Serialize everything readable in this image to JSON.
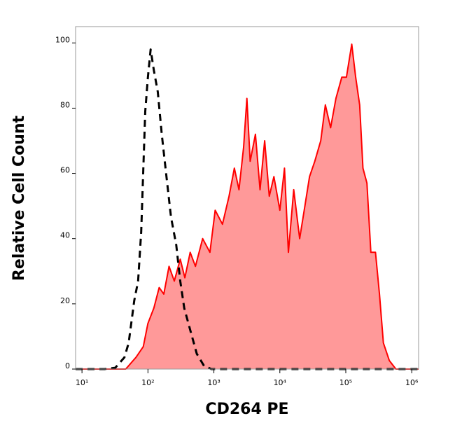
{
  "chart_data": {
    "type": "histogram-overlay",
    "xlabel": "CD264 PE",
    "ylabel": "Relative Cell Count",
    "xscale": "log",
    "xlim": [
      8,
      1270000
    ],
    "ylim": [
      0,
      105
    ],
    "xticks": [
      {
        "value": 10,
        "label": "10¹"
      },
      {
        "value": 100,
        "label": "10²"
      },
      {
        "value": 1000,
        "label": "10³"
      },
      {
        "value": 10000,
        "label": "10⁴"
      },
      {
        "value": 100000,
        "label": "10⁵"
      },
      {
        "value": 1000000,
        "label": "10⁶"
      }
    ],
    "yticks": [
      0,
      20,
      40,
      60,
      80,
      100
    ],
    "series": [
      {
        "color": "#ff0000",
        "fill": "#ff9999",
        "dashed": false,
        "x": [
          8,
          46,
          66,
          85,
          100,
          123,
          148,
          174,
          209,
          251,
          309,
          363,
          437,
          525,
          676,
          871,
          1047,
          1349,
          1698,
          2042,
          2399,
          2818,
          3162,
          3548,
          4266,
          5012,
          5888,
          6918,
          8128,
          10000,
          11749,
          13490,
          16218,
          19953,
          23442,
          28184,
          33884,
          41687,
          48978,
          58884,
          70795,
          87096,
          102329,
          123027,
          141254,
          162181,
          181970,
          208930,
          239883,
          281838,
          323594,
          371535,
          457088,
          575440,
          1270000
        ],
        "values": [
          0,
          0,
          3.6,
          6.9,
          14,
          18.7,
          25,
          23,
          31.5,
          27,
          33.7,
          28,
          35.8,
          31.5,
          40,
          35.8,
          48.7,
          44.4,
          53,
          61.6,
          55,
          68,
          83,
          63.7,
          72,
          55,
          70,
          53,
          59,
          48.7,
          61.6,
          35.8,
          55,
          40,
          48.7,
          59,
          63.7,
          70,
          81,
          74,
          83,
          89.5,
          89.5,
          99.6,
          89.5,
          81,
          61.6,
          57,
          35.8,
          35.8,
          23,
          8,
          2.6,
          0,
          0
        ]
      },
      {
        "color": "#000000",
        "dashed": true,
        "x": [
          8,
          22,
          32,
          44,
          51,
          62,
          71,
          79,
          91,
          100,
          110,
          123,
          141,
          162,
          191,
          224,
          269,
          309,
          355,
          437,
          550,
          708,
          912,
          1270000
        ],
        "values": [
          0,
          0,
          0.4,
          3.6,
          8,
          21,
          27,
          42,
          79,
          89.5,
          98,
          91.6,
          85,
          72,
          59,
          46.6,
          38,
          27,
          18.7,
          12,
          4.7,
          1,
          0,
          0
        ]
      }
    ]
  }
}
